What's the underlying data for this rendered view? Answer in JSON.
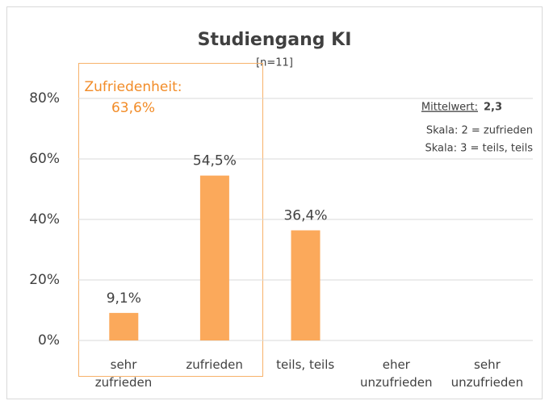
{
  "chart_data": {
    "type": "bar",
    "title": "Studiengang KI",
    "subtitle": "[n=11]",
    "categories": [
      "sehr\nzufrieden",
      "zufrieden",
      "teils, teils",
      "eher\nunzufrieden",
      "sehr\nunzufrieden"
    ],
    "values": [
      9.1,
      54.5,
      36.4,
      0,
      0
    ],
    "value_labels": [
      "9,1%",
      "54,5%",
      "36,4%",
      null,
      null
    ],
    "color": "#fba95b",
    "ylim": [
      0,
      80
    ],
    "yticks": [
      {
        "value": 0,
        "label": "0%"
      },
      {
        "value": 20,
        "label": "20%"
      },
      {
        "value": 40,
        "label": "40%"
      },
      {
        "value": 60,
        "label": "60%"
      },
      {
        "value": 80,
        "label": "80%"
      }
    ],
    "grid": true,
    "annotations": {
      "group_label": "Zufriedenheit:",
      "group_value": "63,6%",
      "mean_label": "Mittelwert:",
      "mean_value": "2,3",
      "scale_1": "Skala: 2 = zufrieden",
      "scale_2": "Skala: 3 = teils, teils"
    }
  }
}
